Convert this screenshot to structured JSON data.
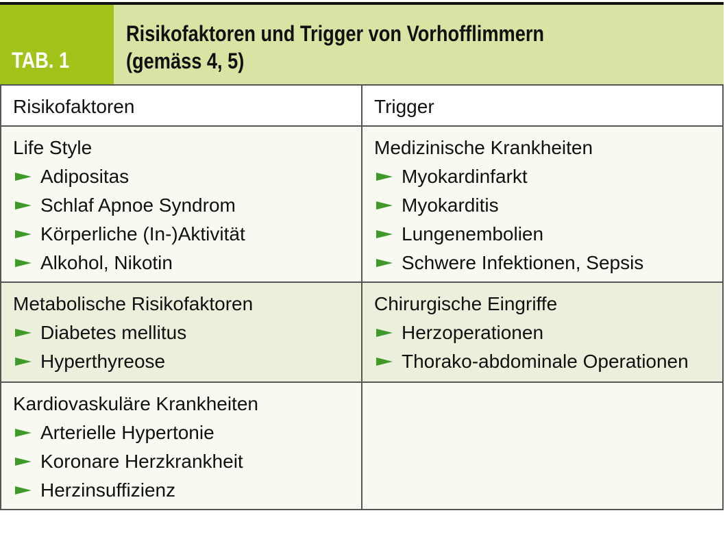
{
  "header": {
    "tab_label": "TAB. 1",
    "title_line1": "Risikofaktoren und Trigger von Vorhofflimmern",
    "title_line2": "(gemäss 4, 5)"
  },
  "columns": [
    "Risikofaktoren",
    "Trigger"
  ],
  "rows": [
    {
      "left": {
        "heading": "Life Style",
        "items": [
          "Adipositas",
          "Schlaf Apnoe Syndrom",
          "Körperliche (In-)Aktivität",
          "Alkohol, Nikotin"
        ]
      },
      "right": {
        "heading": "Medizinische Krankheiten",
        "items": [
          "Myokardinfarkt",
          "Myokarditis",
          "Lungenembolien",
          "Schwere Infektionen, Sepsis"
        ]
      }
    },
    {
      "left": {
        "heading": "Metabolische Risikofaktoren",
        "items": [
          "Diabetes mellitus",
          "Hyperthyreose"
        ]
      },
      "right": {
        "heading": "Chirurgische Eingriffe",
        "items": [
          "Herzoperationen",
          "Thorako-abdominale Operationen"
        ]
      }
    },
    {
      "left": {
        "heading": "Kardiovaskuläre Krankheiten",
        "items": [
          "Arterielle Hypertonie",
          "Koronare Herzkrankheit",
          "Herzinsuffizienz"
        ]
      },
      "right": {
        "heading": "",
        "items": []
      }
    }
  ],
  "colors": {
    "tab_green": "#a2c41a",
    "title_bg": "#d7e4a3",
    "bullet": "#3f9a2a",
    "row_alt": "#ebefdb"
  }
}
